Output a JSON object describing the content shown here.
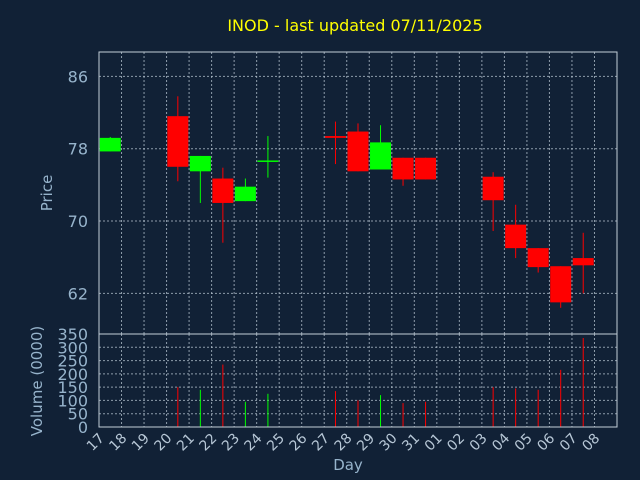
{
  "chart_data": {
    "type": "candlestick",
    "title": "INOD - last updated 07/11/2025",
    "xlabel": "Day",
    "price_axis": {
      "label": "Price",
      "ticks": [
        62,
        70,
        78,
        86
      ],
      "range": [
        57.5,
        88.7
      ]
    },
    "volume_axis": {
      "label": "Volume (0000)",
      "ticks": [
        0,
        50,
        100,
        150,
        200,
        250,
        300,
        350
      ],
      "range": [
        0,
        350
      ]
    },
    "grid": true,
    "day_labels": [
      "17",
      "18",
      "19",
      "20",
      "21",
      "22",
      "23",
      "24",
      "25",
      "26",
      "27",
      "28",
      "29",
      "30",
      "31",
      "01",
      "02",
      "03",
      "04",
      "05",
      "06",
      "07",
      "08"
    ],
    "candles": [
      {
        "day": "17",
        "open": 77.7,
        "high": 79.3,
        "low": 77.7,
        "close": 79.2,
        "volume": 0
      },
      {
        "day": "20",
        "open": 81.6,
        "high": 83.8,
        "low": 74.4,
        "close": 76.0,
        "volume": 150
      },
      {
        "day": "21",
        "open": 75.5,
        "high": 77.2,
        "low": 72.0,
        "close": 77.2,
        "volume": 140
      },
      {
        "day": "22",
        "open": 74.7,
        "high": 75.9,
        "low": 67.6,
        "close": 72.0,
        "volume": 235
      },
      {
        "day": "23",
        "open": 72.2,
        "high": 74.7,
        "low": 72.2,
        "close": 73.8,
        "volume": 95
      },
      {
        "day": "24",
        "open": 76.6,
        "high": 79.4,
        "low": 74.8,
        "close": 76.7,
        "volume": 125
      },
      {
        "day": "27",
        "open": 79.4,
        "high": 81.0,
        "low": 76.3,
        "close": 79.2,
        "volume": 135
      },
      {
        "day": "28",
        "open": 79.9,
        "high": 80.8,
        "low": 75.5,
        "close": 75.5,
        "volume": 100
      },
      {
        "day": "29",
        "open": 75.7,
        "high": 80.6,
        "low": 75.7,
        "close": 78.7,
        "volume": 120
      },
      {
        "day": "30",
        "open": 77.0,
        "high": 77.0,
        "low": 73.9,
        "close": 74.6,
        "volume": 90
      },
      {
        "day": "31",
        "open": 77.0,
        "high": 77.0,
        "low": 74.6,
        "close": 74.6,
        "volume": 95
      },
      {
        "day": "03",
        "open": 74.9,
        "high": 75.4,
        "low": 68.9,
        "close": 72.3,
        "volume": 150
      },
      {
        "day": "04",
        "open": 69.6,
        "high": 71.8,
        "low": 65.9,
        "close": 67.0,
        "volume": 145
      },
      {
        "day": "05",
        "open": 67.0,
        "high": 67.0,
        "low": 64.3,
        "close": 64.9,
        "volume": 140
      },
      {
        "day": "06",
        "open": 65.0,
        "high": 65.0,
        "low": 60.4,
        "close": 61.0,
        "volume": 215
      },
      {
        "day": "07",
        "open": 65.9,
        "high": 68.7,
        "low": 62.0,
        "close": 65.1,
        "volume": 335
      }
    ],
    "colors": {
      "up": "#00ff00",
      "down": "#ff0000",
      "background": "#112136",
      "title": "#ffff00",
      "axis_text": "#97b4cc"
    }
  }
}
